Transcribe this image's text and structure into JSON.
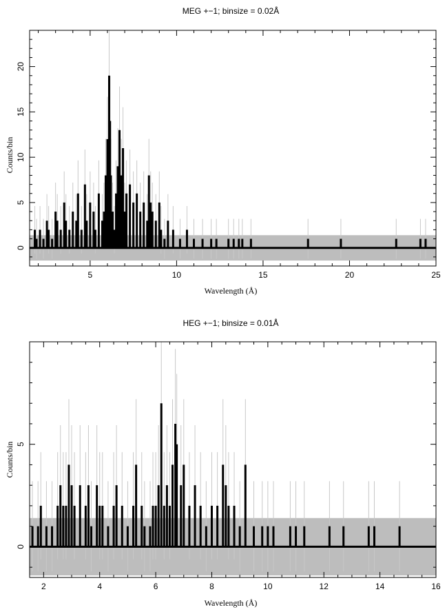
{
  "chart_data": [
    {
      "type": "line",
      "title": "MEG +−1; binsize = 0.02Å",
      "xlabel": "Wavelength (Å)",
      "ylabel": "Counts/bin",
      "xlim": [
        1.5,
        25
      ],
      "ylim": [
        -2,
        24
      ],
      "xticks": [
        5,
        10,
        15,
        20,
        25
      ],
      "yticks": [
        0,
        5,
        10,
        15,
        20
      ],
      "grid": false,
      "error_band": [
        -1.4,
        1.4
      ],
      "series": [
        {
          "style": "histogram",
          "x": [
            1.8,
            1.9,
            2.1,
            2.3,
            2.5,
            2.6,
            2.8,
            3.0,
            3.1,
            3.3,
            3.5,
            3.6,
            3.8,
            4.0,
            4.2,
            4.3,
            4.5,
            4.7,
            4.8,
            5.0,
            5.2,
            5.3,
            5.5,
            5.7,
            5.8,
            5.9,
            6.0,
            6.1,
            6.15,
            6.2,
            6.3,
            6.4,
            6.5,
            6.6,
            6.7,
            6.8,
            6.9,
            7.0,
            7.1,
            7.3,
            7.5,
            7.7,
            7.9,
            8.1,
            8.3,
            8.4,
            8.5,
            8.6,
            8.8,
            9.0,
            9.1,
            9.3,
            9.5,
            9.8,
            10.2,
            10.6,
            11.0,
            11.5,
            12.0,
            12.3,
            13.0,
            13.3,
            13.6,
            13.8,
            14.3,
            17.6,
            19.5,
            22.7,
            24.1,
            24.4
          ],
          "y": [
            2,
            1,
            2,
            1,
            3,
            2,
            1,
            4,
            3,
            2,
            5,
            3,
            2,
            4,
            3,
            6,
            2,
            7,
            3,
            5,
            4,
            2,
            6,
            3,
            4,
            8,
            12,
            19,
            14,
            8,
            4,
            2,
            6,
            9,
            13,
            8,
            11,
            4,
            6,
            7,
            5,
            6,
            4,
            5,
            3,
            8,
            5,
            4,
            3,
            5,
            2,
            1,
            3,
            2,
            1,
            2,
            1,
            1,
            1,
            1,
            1,
            1,
            1,
            1,
            1,
            1,
            1,
            1,
            1,
            1
          ]
        }
      ]
    },
    {
      "type": "line",
      "title": "HEG +−1; binsize = 0.01Å",
      "xlabel": "Wavelength (Å)",
      "ylabel": "Counts/bin",
      "xlim": [
        1.5,
        16
      ],
      "ylim": [
        -1.5,
        10
      ],
      "xticks": [
        2,
        4,
        6,
        8,
        10,
        12,
        14,
        16
      ],
      "yticks": [
        0,
        5
      ],
      "grid": false,
      "error_band": [
        -1.4,
        1.4
      ],
      "series": [
        {
          "style": "histogram",
          "x": [
            1.6,
            1.8,
            1.9,
            2.1,
            2.3,
            2.5,
            2.6,
            2.7,
            2.8,
            2.9,
            3.0,
            3.1,
            3.3,
            3.5,
            3.6,
            3.7,
            3.9,
            4.0,
            4.1,
            4.3,
            4.5,
            4.6,
            4.8,
            5.0,
            5.2,
            5.3,
            5.5,
            5.6,
            5.8,
            5.9,
            6.0,
            6.1,
            6.2,
            6.3,
            6.4,
            6.5,
            6.6,
            6.7,
            6.75,
            6.9,
            7.0,
            7.2,
            7.4,
            7.6,
            7.8,
            8.0,
            8.2,
            8.4,
            8.5,
            8.6,
            8.8,
            9.0,
            9.2,
            9.5,
            9.8,
            10.0,
            10.2,
            10.8,
            11.0,
            11.3,
            12.2,
            12.7,
            13.6,
            13.8,
            14.7
          ],
          "y": [
            1,
            1,
            2,
            1,
            1,
            2,
            3,
            2,
            2,
            4,
            3,
            2,
            3,
            2,
            3,
            1,
            3,
            2,
            2,
            1,
            2,
            3,
            2,
            1,
            2,
            4,
            2,
            1,
            1,
            2,
            2,
            3,
            7,
            2,
            3,
            2,
            4,
            6,
            5,
            3,
            4,
            2,
            3,
            2,
            1,
            2,
            2,
            4,
            3,
            2,
            2,
            1,
            4,
            1,
            1,
            1,
            1,
            1,
            1,
            1,
            1,
            1,
            1,
            1,
            1
          ]
        }
      ]
    }
  ]
}
